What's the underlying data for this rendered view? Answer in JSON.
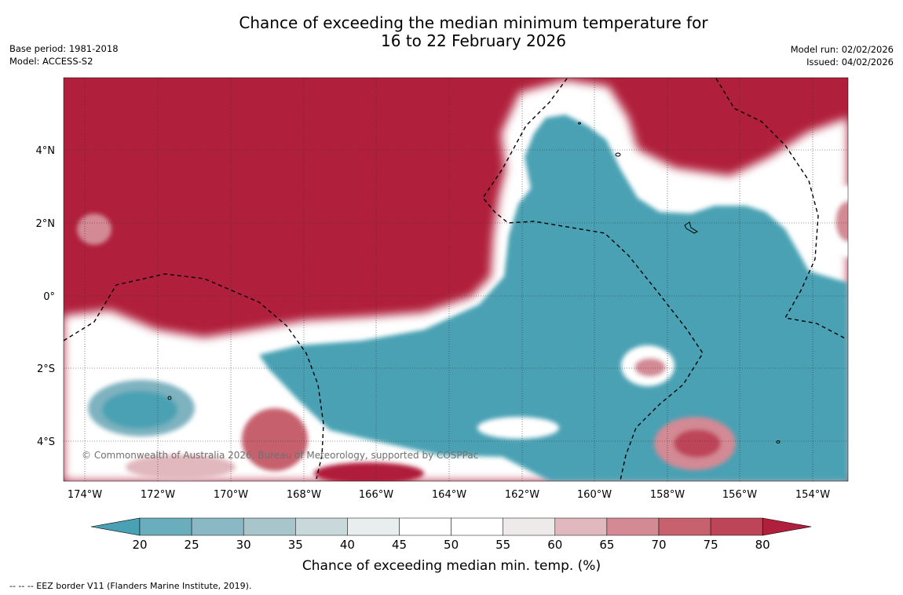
{
  "title": {
    "line1": "Chance of exceeding the median minimum temperature for",
    "line2": "16 to 22 February 2026"
  },
  "meta_left": {
    "base_period": "Base period: 1981-2018",
    "model": "Model: ACCESS-S2"
  },
  "meta_right": {
    "model_run": "Model run: 02/02/2026",
    "issued": "Issued: 04/02/2026"
  },
  "map": {
    "lat_labels": [
      "4°N",
      "2°N",
      "0°",
      "2°S",
      "4°S"
    ],
    "lon_labels": [
      "174°W",
      "172°W",
      "170°W",
      "168°W",
      "166°W",
      "164°W",
      "162°W",
      "160°W",
      "158°W",
      "156°W",
      "154°W"
    ],
    "copyright": "© Commonwealth of Australia 2026, Bureau of Meteorology, supported by COSPPac"
  },
  "colorbar": {
    "labels": [
      "20",
      "25",
      "30",
      "35",
      "40",
      "45",
      "50",
      "55",
      "60",
      "65",
      "70",
      "75",
      "80"
    ],
    "colors": [
      "#4aa1b3",
      "#6aadbd",
      "#8ab8c5",
      "#a9c5cc",
      "#c9d8db",
      "#e8eeee",
      "#ffffff",
      "#ffffff",
      "#eeeaea",
      "#e1b8be",
      "#d38a94",
      "#c6616d",
      "#be4558",
      "#b01f3b"
    ],
    "title": "Chance of exceeding median min. temp. (%)"
  },
  "footer": "--  --  -- EEZ border V11 (Flanders Marine Institute, 2019)."
}
